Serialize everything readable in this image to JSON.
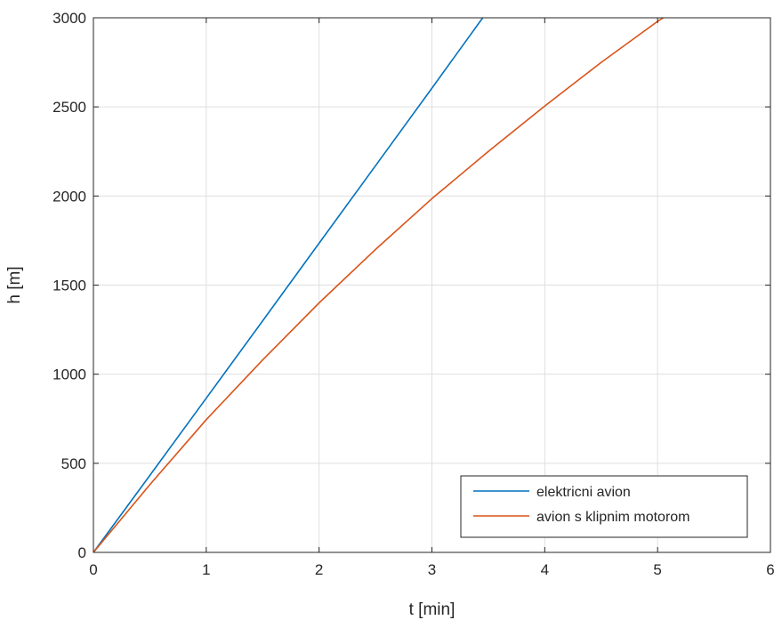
{
  "chart_data": {
    "type": "line",
    "title": "",
    "xlabel": "t [min]",
    "ylabel": "h [m]",
    "xlim": [
      0,
      6
    ],
    "ylim": [
      0,
      3000
    ],
    "xticks": [
      "0",
      "1",
      "2",
      "3",
      "4",
      "5",
      "6"
    ],
    "yticks": [
      "0",
      "500",
      "1000",
      "1500",
      "2000",
      "2500",
      "3000"
    ],
    "grid": true,
    "legend_position": "bottom-right",
    "series": [
      {
        "name": "elektricni avion",
        "color": "#0072BD",
        "x": [
          0,
          0.5,
          1,
          1.5,
          2,
          2.5,
          3,
          3.45
        ],
        "y": [
          0,
          432,
          865,
          1300,
          1735,
          2170,
          2605,
          3000
        ]
      },
      {
        "name": "avion s klipnim motorom",
        "color": "#D95319",
        "x": [
          0,
          0.5,
          1,
          1.5,
          2,
          2.5,
          3,
          3.5,
          4,
          4.5,
          5,
          5.05
        ],
        "y": [
          0,
          380,
          745,
          1080,
          1400,
          1700,
          1985,
          2250,
          2505,
          2750,
          2980,
          3000
        ]
      }
    ]
  }
}
